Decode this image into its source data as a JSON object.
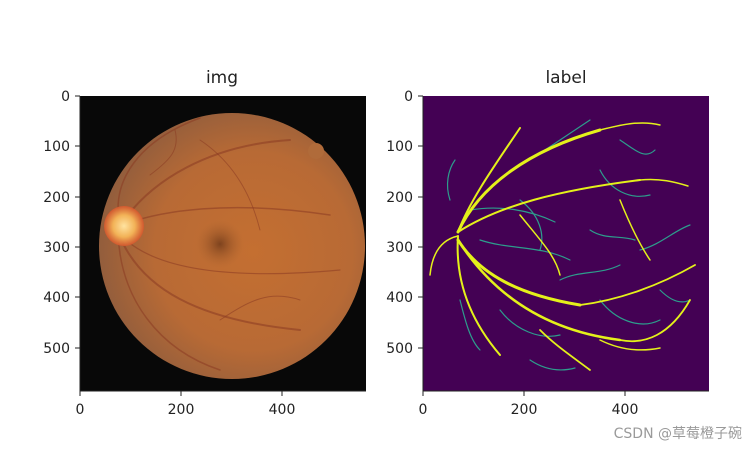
{
  "figure": {
    "panels": [
      {
        "title": "img",
        "yticks": [
          "0",
          "100",
          "200",
          "300",
          "400",
          "500"
        ],
        "xticks": [
          "0",
          "200",
          "400"
        ]
      },
      {
        "title": "label",
        "yticks": [
          "0",
          "100",
          "200",
          "300",
          "400",
          "500"
        ],
        "xticks": [
          "0",
          "200",
          "400"
        ]
      }
    ]
  },
  "colors": {
    "fundus_bg": "#080808",
    "fundus_retina": "#c06e34",
    "label_bg": "#440154",
    "vessel_major": "#e4f11a",
    "vessel_minor": "#2d9d8c"
  },
  "watermark": "CSDN @草莓橙子碗"
}
